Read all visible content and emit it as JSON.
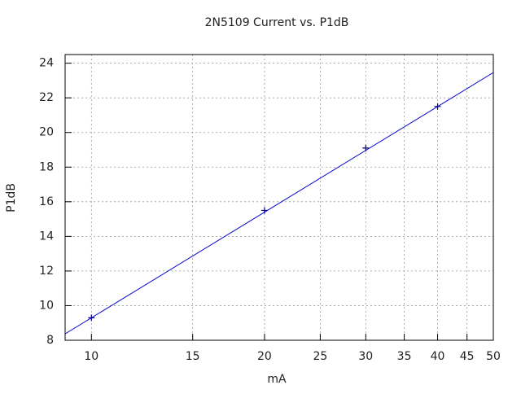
{
  "chart_data": {
    "type": "line",
    "title": "2N5109 Current vs. P1dB",
    "x_label": "mA",
    "y_label": "P1dB",
    "log_x": true,
    "grid": true,
    "xlim": [
      9,
      50
    ],
    "xticks": [
      10,
      15,
      20,
      25,
      30,
      35,
      40,
      45,
      50
    ],
    "ylim": [
      8,
      24.5
    ],
    "yticks": [
      8,
      10,
      12,
      14,
      16,
      18,
      20,
      22,
      24
    ],
    "series": [
      {
        "kind": "points",
        "color": "#000080",
        "x": [
          10,
          20,
          30,
          40
        ],
        "values": [
          9.3,
          15.5,
          19.1,
          21.5
        ]
      },
      {
        "kind": "line",
        "color": "#0000cc",
        "x": [
          9,
          50
        ],
        "values": [
          8.37,
          23.46
        ]
      }
    ]
  }
}
